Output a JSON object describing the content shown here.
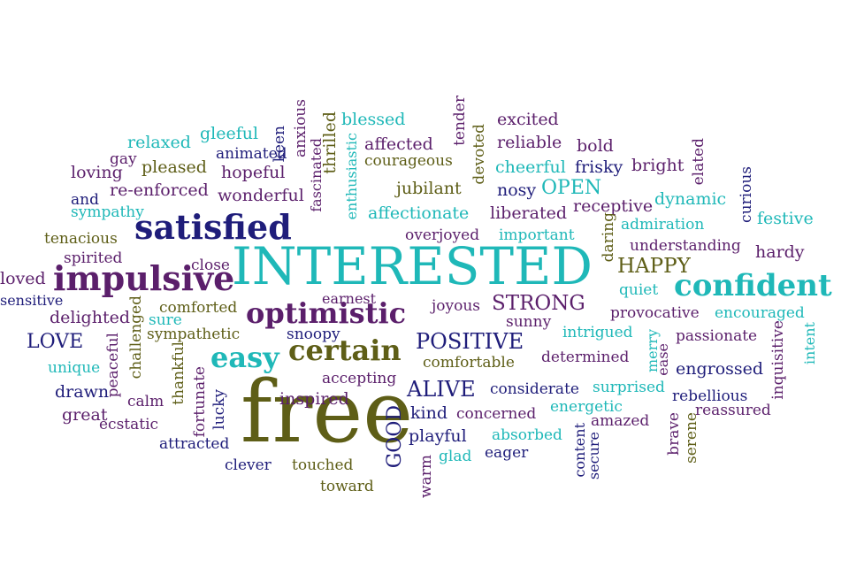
{
  "palette": {
    "navy": "#1f1d7a",
    "teal": "#1fb8b8",
    "olive": "#5e5e17",
    "purple": "#5b1f6b"
  },
  "words": [
    {
      "text": "INTERESTED",
      "color": "#1fb8b8"
    },
    {
      "text": "free",
      "color": "#5e5e17"
    },
    {
      "text": "confident",
      "color": "#1fb8b8"
    },
    {
      "text": "impulsive",
      "color": "#5b1f6b"
    },
    {
      "text": "satisfied",
      "color": "#1f1d7a"
    },
    {
      "text": "optimistic",
      "color": "#5b1f6b"
    },
    {
      "text": "certain",
      "color": "#5e5e17"
    },
    {
      "text": "easy",
      "color": "#1fb8b8"
    },
    {
      "text": "POSITIVE",
      "color": "#1f1d7a"
    },
    {
      "text": "HAPPY",
      "color": "#5e5e17"
    },
    {
      "text": "STRONG",
      "color": "#5b1f6b"
    },
    {
      "text": "ALIVE",
      "color": "#1f1d7a"
    },
    {
      "text": "GOOD",
      "color": "#1f1d7a"
    },
    {
      "text": "OPEN",
      "color": "#1fb8b8"
    },
    {
      "text": "LOVE",
      "color": "#1f1d7a"
    },
    {
      "text": "blessed",
      "color": "#1fb8b8"
    },
    {
      "text": "excited",
      "color": "#5b1f6b"
    },
    {
      "text": "reliable",
      "color": "#5b1f6b"
    },
    {
      "text": "bold",
      "color": "#5b1f6b"
    },
    {
      "text": "affected",
      "color": "#5b1f6b"
    },
    {
      "text": "courageous",
      "color": "#5e5e17"
    },
    {
      "text": "cheerful",
      "color": "#1fb8b8"
    },
    {
      "text": "frisky",
      "color": "#1f1d7a"
    },
    {
      "text": "bright",
      "color": "#5b1f6b"
    },
    {
      "text": "keen",
      "color": "#1f1d7a"
    },
    {
      "text": "anxious",
      "color": "#5b1f6b"
    },
    {
      "text": "thrilled",
      "color": "#5e5e17"
    },
    {
      "text": "fascinated",
      "color": "#5b1f6b"
    },
    {
      "text": "enthusiastic",
      "color": "#1fb8b8"
    },
    {
      "text": "tender",
      "color": "#5b1f6b"
    },
    {
      "text": "devoted",
      "color": "#5e5e17"
    },
    {
      "text": "relaxed",
      "color": "#1fb8b8"
    },
    {
      "text": "gleeful",
      "color": "#1fb8b8"
    },
    {
      "text": "gay",
      "color": "#5b1f6b"
    },
    {
      "text": "pleased",
      "color": "#5e5e17"
    },
    {
      "text": "animated",
      "color": "#1f1d7a"
    },
    {
      "text": "hopeful",
      "color": "#5b1f6b"
    },
    {
      "text": "loving",
      "color": "#5b1f6b"
    },
    {
      "text": "re-enforced",
      "color": "#5b1f6b"
    },
    {
      "text": "wonderful",
      "color": "#5b1f6b"
    },
    {
      "text": "jubilant",
      "color": "#5e5e17"
    },
    {
      "text": "nosy",
      "color": "#1f1d7a"
    },
    {
      "text": "elated",
      "color": "#5b1f6b"
    },
    {
      "text": "dynamic",
      "color": "#1fb8b8"
    },
    {
      "text": "curious",
      "color": "#1f1d7a"
    },
    {
      "text": "and",
      "color": "#1f1d7a"
    },
    {
      "text": "sympathy",
      "color": "#1fb8b8"
    },
    {
      "text": "affectionate",
      "color": "#1fb8b8"
    },
    {
      "text": "liberated",
      "color": "#5b1f6b"
    },
    {
      "text": "receptive",
      "color": "#5b1f6b"
    },
    {
      "text": "festive",
      "color": "#1fb8b8"
    },
    {
      "text": "admiration",
      "color": "#1fb8b8"
    },
    {
      "text": "tenacious",
      "color": "#5e5e17"
    },
    {
      "text": "overjoyed",
      "color": "#5b1f6b"
    },
    {
      "text": "important",
      "color": "#1fb8b8"
    },
    {
      "text": "daring",
      "color": "#5e5e17"
    },
    {
      "text": "understanding",
      "color": "#5b1f6b"
    },
    {
      "text": "hardy",
      "color": "#5b1f6b"
    },
    {
      "text": "spirited",
      "color": "#5b1f6b"
    },
    {
      "text": "close",
      "color": "#5b1f6b"
    },
    {
      "text": "loved",
      "color": "#5b1f6b"
    },
    {
      "text": "quiet",
      "color": "#1fb8b8"
    },
    {
      "text": "sensitive",
      "color": "#1f1d7a"
    },
    {
      "text": "earnest",
      "color": "#5b1f6b"
    },
    {
      "text": "joyous",
      "color": "#5b1f6b"
    },
    {
      "text": "comforted",
      "color": "#5e5e17"
    },
    {
      "text": "provocative",
      "color": "#5b1f6b"
    },
    {
      "text": "encouraged",
      "color": "#1fb8b8"
    },
    {
      "text": "delighted",
      "color": "#5b1f6b"
    },
    {
      "text": "sure",
      "color": "#1fb8b8"
    },
    {
      "text": "sunny",
      "color": "#5b1f6b"
    },
    {
      "text": "sympathetic",
      "color": "#5e5e17"
    },
    {
      "text": "snoopy",
      "color": "#1f1d7a"
    },
    {
      "text": "intrigued",
      "color": "#1fb8b8"
    },
    {
      "text": "passionate",
      "color": "#5b1f6b"
    },
    {
      "text": "challenged",
      "color": "#5e5e17"
    },
    {
      "text": "peaceful",
      "color": "#5b1f6b"
    },
    {
      "text": "thankful",
      "color": "#5e5e17"
    },
    {
      "text": "merry",
      "color": "#1fb8b8"
    },
    {
      "text": "ease",
      "color": "#5b1f6b"
    },
    {
      "text": "inquisitive",
      "color": "#5b1f6b"
    },
    {
      "text": "intent",
      "color": "#1fb8b8"
    },
    {
      "text": "unique",
      "color": "#1fb8b8"
    },
    {
      "text": "comfortable",
      "color": "#5e5e17"
    },
    {
      "text": "determined",
      "color": "#5b1f6b"
    },
    {
      "text": "engrossed",
      "color": "#1f1d7a"
    },
    {
      "text": "accepting",
      "color": "#5b1f6b"
    },
    {
      "text": "considerate",
      "color": "#1f1d7a"
    },
    {
      "text": "surprised",
      "color": "#1fb8b8"
    },
    {
      "text": "rebellious",
      "color": "#1f1d7a"
    },
    {
      "text": "drawn",
      "color": "#1f1d7a"
    },
    {
      "text": "calm",
      "color": "#5b1f6b"
    },
    {
      "text": "fortunate",
      "color": "#5b1f6b"
    },
    {
      "text": "lucky",
      "color": "#1f1d7a"
    },
    {
      "text": "inspired",
      "color": "#5b1f6b"
    },
    {
      "text": "kind",
      "color": "#1f1d7a"
    },
    {
      "text": "concerned",
      "color": "#5b1f6b"
    },
    {
      "text": "energetic",
      "color": "#1fb8b8"
    },
    {
      "text": "reassured",
      "color": "#5b1f6b"
    },
    {
      "text": "great",
      "color": "#5b1f6b"
    },
    {
      "text": "ecstatic",
      "color": "#5b1f6b"
    },
    {
      "text": "amazed",
      "color": "#5b1f6b"
    },
    {
      "text": "brave",
      "color": "#5b1f6b"
    },
    {
      "text": "serene",
      "color": "#5e5e17"
    },
    {
      "text": "attracted",
      "color": "#1f1d7a"
    },
    {
      "text": "playful",
      "color": "#1f1d7a"
    },
    {
      "text": "absorbed",
      "color": "#1fb8b8"
    },
    {
      "text": "content",
      "color": "#1f1d7a"
    },
    {
      "text": "secure",
      "color": "#1f1d7a"
    },
    {
      "text": "clever",
      "color": "#1f1d7a"
    },
    {
      "text": "touched",
      "color": "#5e5e17"
    },
    {
      "text": "warm",
      "color": "#5b1f6b"
    },
    {
      "text": "glad",
      "color": "#1fb8b8"
    },
    {
      "text": "eager",
      "color": "#1f1d7a"
    },
    {
      "text": "toward",
      "color": "#5e5e17"
    }
  ]
}
